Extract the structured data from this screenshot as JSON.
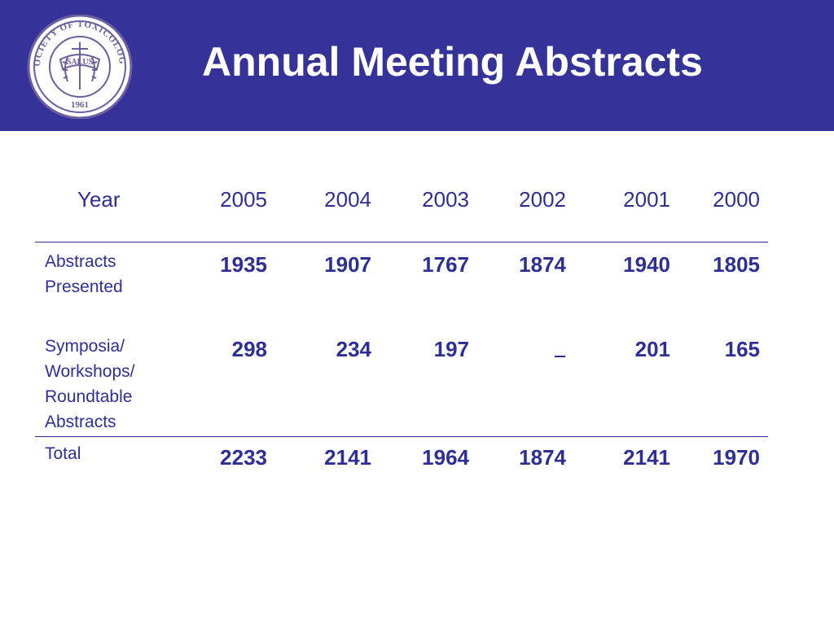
{
  "slide": {
    "title": "Annual Meeting Abstracts",
    "logo": {
      "name": "Society of Toxicology seal",
      "ring_text": "SOCIETY OF TOXICOLOGY",
      "banner_text": "SALUS",
      "year_text": "1961",
      "colors": {
        "ring": "#6c5f9f",
        "fill": "#ffffff"
      }
    },
    "colors": {
      "header_band": "#35339a",
      "table_text": "#2e2f96",
      "title_text": "#ffffff",
      "background": "#ffffff"
    }
  },
  "table": {
    "header_label": "Year",
    "years": [
      "2005",
      "2004",
      "2003",
      "2002",
      "2001",
      "2000"
    ],
    "rows": [
      {
        "label_lines": [
          "Abstracts",
          "Presented"
        ],
        "values": [
          "1935",
          "1907",
          "1767",
          "1874",
          "1940",
          "1805"
        ]
      },
      {
        "label_lines": [
          "Symposia/",
          "Workshops/",
          "Roundtable",
          "Abstracts"
        ],
        "values": [
          "298",
          "234",
          "197",
          "",
          "201",
          "165"
        ]
      },
      {
        "label_lines": [
          "Total"
        ],
        "values": [
          "2233",
          "2141",
          "1964",
          "1874",
          "2141",
          "1970"
        ]
      }
    ]
  }
}
